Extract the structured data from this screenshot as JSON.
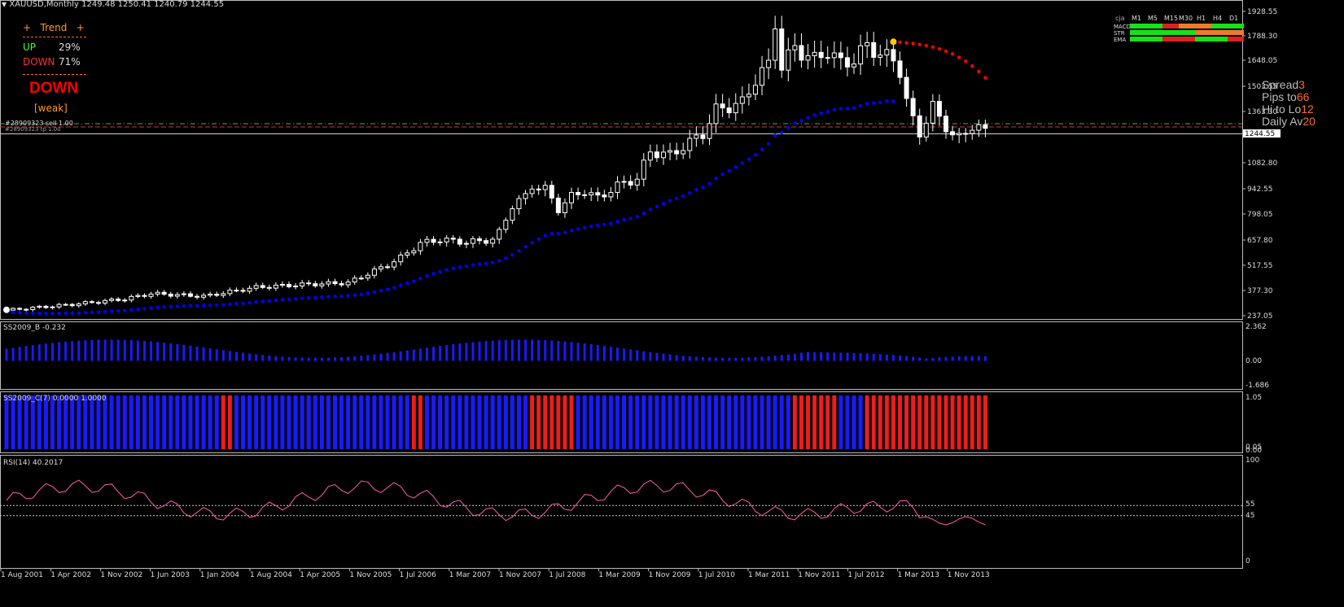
{
  "header": {
    "symbol_line": "XAUUSD,Monthly  1249.48 1250.41 1240.79 1244.55"
  },
  "trend_panel": {
    "title": "+   Trend   +",
    "up_label": "UP",
    "up_value": "29%",
    "down_label": "DOWN",
    "down_value": "71%",
    "signal": "DOWN",
    "strength": "[weak]",
    "colors": {
      "up": "#3cff3c",
      "down": "#ff3030",
      "accent": "#ff9a2a"
    }
  },
  "order_lines": {
    "order1": "#28909323 sell 1.00",
    "order2": "#28909323 tp 1.00"
  },
  "right_info": {
    "spread_label": "Spread",
    "spread_value": "3",
    "pips_label": "Pips to",
    "pips_value": "66",
    "hito_label": "Hi to Lo",
    "hito_value": "12",
    "daily_label": "Daily Av",
    "daily_value": "20"
  },
  "mtf_table": {
    "corner": "cja",
    "timeframes": [
      "M1",
      "M5",
      "M15",
      "M30",
      "H1",
      "H4",
      "D1"
    ],
    "rows": [
      {
        "name": "MACD",
        "cells": [
          "green",
          "green",
          "red",
          "orange",
          "orange",
          "green",
          "green"
        ]
      },
      {
        "name": "STR",
        "cells": [
          "green",
          "green",
          "green",
          "green",
          "orange",
          "orange",
          "orange"
        ]
      },
      {
        "name": "EMA",
        "cells": [
          "green",
          "green",
          "red",
          "red",
          "green",
          "green",
          "red"
        ]
      }
    ]
  },
  "price_axis": [
    "1928.55",
    "1788.30",
    "1648.05",
    "1503.55",
    "1363.30",
    "1244.55",
    "1082.80",
    "942.55",
    "798.05",
    "657.80",
    "517.55",
    "377.30",
    "237.05"
  ],
  "indicators": {
    "ss_b_label": "SS2009_B -0.232",
    "ss_b_axis": [
      "2.362",
      "0.00",
      "-1.686"
    ],
    "ss_c_label": "SS2009_C(7) 0.0000 1.0000",
    "ss_c_axis": [
      "1.05",
      "0.05",
      "0.00"
    ],
    "rsi_label": "RSI(14) 40.2017",
    "rsi_axis": [
      "100",
      "55",
      "45",
      "0"
    ]
  },
  "date_axis": [
    "1 Aug 2001",
    "1 Apr 2002",
    "1 Nov 2002",
    "1 Jun 2003",
    "1 Jan 2004",
    "1 Aug 2004",
    "1 Apr 2005",
    "1 Nov 2005",
    "1 Jul 2006",
    "1 Mar 2007",
    "1 Nov 2007",
    "1 Jul 2008",
    "1 Mar 2009",
    "1 Nov 2009",
    "1 Jul 2010",
    "1 Mar 2011",
    "1 Nov 2011",
    "1 Jul 2012",
    "1 Mar 2013",
    "1 Nov 2013"
  ],
  "colors": {
    "bull": "#ffffff",
    "bear": "#ffffff",
    "ma_blue": "#0000ff",
    "ma_red": "#ff0000",
    "hist_blue": "#1a1aff",
    "hist_red": "#ee1c1c",
    "rsi": "#ff5ea8"
  }
}
